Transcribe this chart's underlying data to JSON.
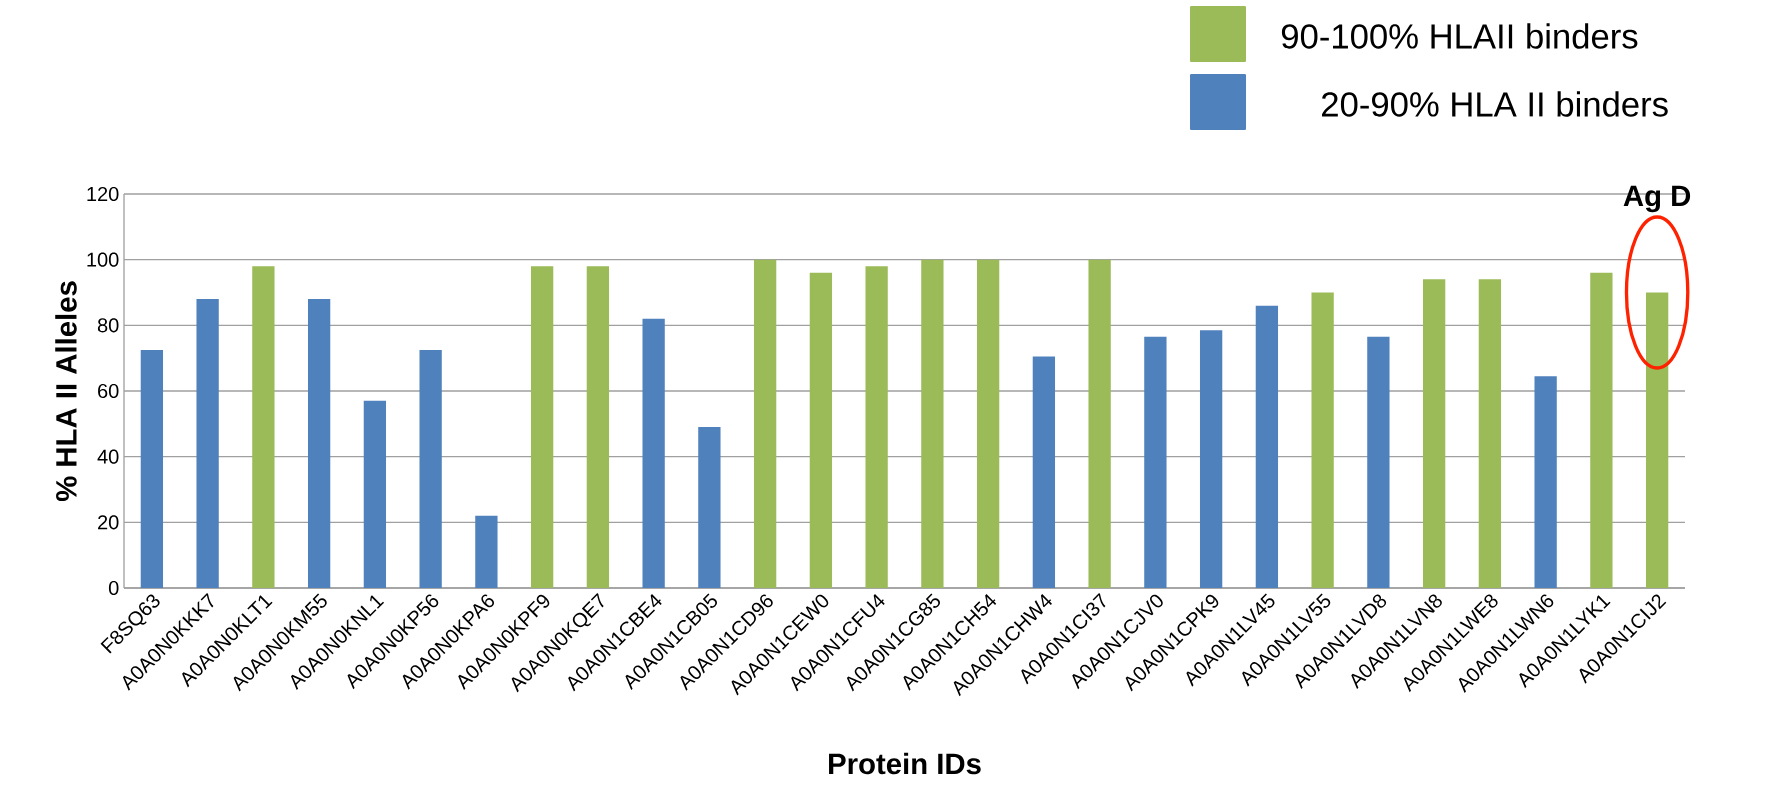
{
  "chart_data": {
    "type": "bar",
    "xlabel": "Protein IDs",
    "ylabel": "% HLA II Alleles",
    "categories": [
      "F8SQ63",
      "A0A0N0KKK7",
      "A0A0N0KLT1",
      "A0A0N0KM55",
      "A0A0N0KNL1",
      "A0A0N0KP56",
      "A0A0N0KPA6",
      "A0A0N0KPF9",
      "A0A0N0KQE7",
      "A0A0N1CBE4",
      "A0A0N1CB05",
      "A0A0N1CD96",
      "A0A0N1CEW0",
      "A0A0N1CFU4",
      "A0A0N1CG85",
      "A0A0N1CH54",
      "A0A0N1CHW4",
      "A0A0N1CI37",
      "A0A0N1CJV0",
      "A0A0N1CPK9",
      "A0A0N1LV45",
      "A0A0N1LV55",
      "A0A0N1LVD8",
      "A0A0N1LVN8",
      "A0A0N1LWE8",
      "A0A0N1LWN6",
      "A0A0N1LYK1",
      "A0A0N1CIJ2"
    ],
    "series": [
      {
        "name": "90-100% HLAII binders",
        "color": "#9bbb59",
        "values": [
          null,
          null,
          98,
          null,
          null,
          null,
          null,
          98,
          98,
          null,
          null,
          100,
          96,
          98,
          100,
          100,
          null,
          100,
          null,
          null,
          null,
          90,
          null,
          94,
          94,
          null,
          96,
          90
        ]
      },
      {
        "name": "20-90% HLA II  binders",
        "color": "#4f81bd",
        "values": [
          72.5,
          88,
          null,
          88,
          57,
          72.5,
          22,
          null,
          null,
          82,
          49,
          null,
          null,
          null,
          null,
          null,
          70.5,
          null,
          76.5,
          78.5,
          86,
          null,
          76.5,
          null,
          null,
          64.5,
          null,
          null
        ]
      }
    ],
    "ylim": [
      0,
      120
    ],
    "yticks": [
      0,
      20,
      40,
      60,
      80,
      100,
      120
    ],
    "grid": "y",
    "legend": "top right",
    "annotations": [
      {
        "text": "Ag D",
        "x": "A0A0N1CIJ2",
        "y": 90
      }
    ]
  }
}
